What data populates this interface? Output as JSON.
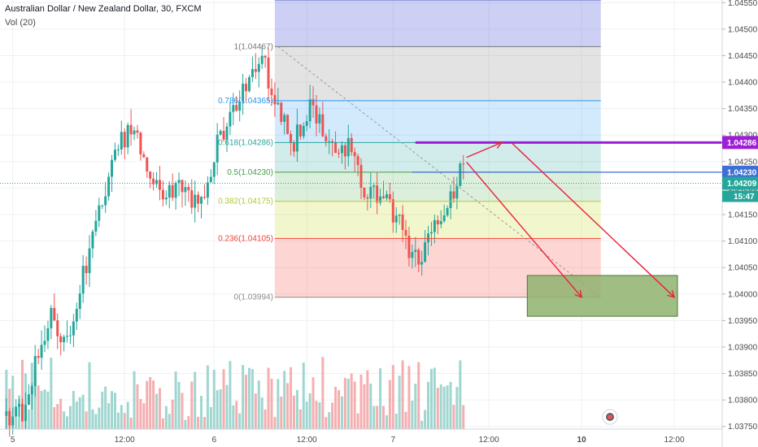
{
  "header": {
    "title": "Australian Dollar / New Zealand Dollar, 30, FXCM",
    "volume_label": "Vol (20)"
  },
  "colors": {
    "up": "#26a69a",
    "down": "#ef5350",
    "vol_up": "#9fd6cf",
    "vol_down": "#f5aeb0",
    "purple": "#9c1fd6",
    "blue_line": "#3d6fd6",
    "arrow": "#e8213a",
    "target_fill": "#8fb36f",
    "target_stroke": "#4d7a34"
  },
  "chart_data": {
    "type": "candlestick",
    "y_axis": {
      "range": [
        1.03745,
        1.04555
      ],
      "ticks": [
        1.0455,
        1.045,
        1.0445,
        1.044,
        1.0435,
        1.043,
        1.0425,
        1.042,
        1.0415,
        1.041,
        1.0405,
        1.04,
        1.0395,
        1.039,
        1.0385,
        1.038,
        1.0375
      ],
      "tick_labels": [
        "1.04550",
        "1.04500",
        "1.04450",
        "1.04400",
        "1.04350",
        "1.04300",
        "1.04250",
        "1.04200",
        "1.04150",
        "1.04100",
        "1.04050",
        "1.04000",
        "1.03950",
        "1.03900",
        "1.03850",
        "1.03800",
        "1.03750"
      ]
    },
    "x_axis": {
      "bar_range": [
        -2,
        224
      ],
      "ticks": [
        {
          "bar": 2,
          "label": "5"
        },
        {
          "bar": 37,
          "label": "12:00"
        },
        {
          "bar": 65,
          "label": "6"
        },
        {
          "bar": 94,
          "label": "12:00"
        },
        {
          "bar": 121,
          "label": "7"
        },
        {
          "bar": 151,
          "label": "12:00"
        },
        {
          "bar": 180,
          "label": "10"
        },
        {
          "bar": 209,
          "label": "12:00"
        }
      ]
    },
    "ohlc_trend_anchors": [
      [
        0,
        1.0377
      ],
      [
        5,
        1.0378
      ],
      [
        9,
        1.0387
      ],
      [
        14,
        1.0396
      ],
      [
        19,
        1.0391
      ],
      [
        24,
        1.0404
      ],
      [
        27,
        1.041
      ],
      [
        32,
        1.0423
      ],
      [
        35,
        1.0428
      ],
      [
        40,
        1.0432
      ],
      [
        44,
        1.0424
      ],
      [
        50,
        1.0418
      ],
      [
        54,
        1.0421
      ],
      [
        58,
        1.0417
      ],
      [
        62,
        1.0418
      ],
      [
        66,
        1.0428
      ],
      [
        71,
        1.0434
      ],
      [
        76,
        1.0441
      ],
      [
        80,
        1.0445
      ],
      [
        85,
        1.0434
      ],
      [
        90,
        1.0429
      ],
      [
        95,
        1.0435
      ],
      [
        100,
        1.0431
      ],
      [
        104,
        1.0428
      ],
      [
        108,
        1.0427
      ],
      [
        112,
        1.042
      ],
      [
        117,
        1.0418
      ],
      [
        122,
        1.0415
      ],
      [
        127,
        1.0406
      ],
      [
        131,
        1.0408
      ],
      [
        135,
        1.0414
      ],
      [
        139,
        1.0418
      ],
      [
        143,
        1.0424
      ]
    ],
    "volume_max": 100,
    "fibonacci": {
      "start_bar": 84,
      "end_bar": 186,
      "levels": [
        {
          "ratio": "0",
          "price": 1.03994,
          "label": "0(1.03994)",
          "line": "#8c8c8c",
          "fill": "rgba(244,67,54,0.22)"
        },
        {
          "ratio": "0.236",
          "price": 1.04105,
          "label": "0.236(1.04105)",
          "line": "#f44336",
          "fill": "rgba(205,220,57,0.25)"
        },
        {
          "ratio": "0.382",
          "price": 1.04175,
          "label": "0.382(1.04175)",
          "line": "#b4c834",
          "fill": "rgba(76,175,80,0.20)"
        },
        {
          "ratio": "0.5",
          "price": 1.0423,
          "label": "0.5(1.04230)",
          "line": "#43a047",
          "fill": "rgba(0,150,136,0.18)"
        },
        {
          "ratio": "0.618",
          "price": 1.04286,
          "label": "0.618(1.04286)",
          "line": "#26a69a",
          "fill": "rgba(33,150,243,0.20)"
        },
        {
          "ratio": "0.786",
          "price": 1.04365,
          "label": "0.786(1.04365)",
          "line": "#2196f3",
          "fill": "rgba(128,128,128,0.22)"
        },
        {
          "ratio": "1",
          "price": 1.04467,
          "label": "1(1.04467)",
          "line": "#787878",
          "fill": "rgba(88,96,220,0.30)"
        },
        {
          "ratio": "1.2",
          "price": 1.04555,
          "label": "",
          "line": "#5c6bc0",
          "fill": ""
        }
      ]
    },
    "resistance_line": {
      "price": 1.04286,
      "start_bar": 128,
      "label": "1.04286"
    },
    "support_line": {
      "price": 1.0423,
      "start_bar": 127,
      "label": "1.04230"
    },
    "current_price": {
      "price": 1.04209,
      "label": "1.04209",
      "countdown": "15:47"
    },
    "trend_line": {
      "from": [
        85,
        1.04467
      ],
      "to": [
        186,
        1.03994
      ]
    },
    "target_zone": {
      "bar_from": 163,
      "bar_to": 210,
      "price_top": 1.04035,
      "price_bottom": 1.03958
    },
    "arrows": [
      {
        "from": [
          144,
          1.04258
        ],
        "to": [
          155,
          1.04286
        ]
      },
      {
        "from": [
          144,
          1.04249
        ],
        "to": [
          180,
          1.03994
        ]
      },
      {
        "from": [
          158,
          1.04286
        ],
        "to": [
          209,
          1.03994
        ]
      }
    ]
  }
}
